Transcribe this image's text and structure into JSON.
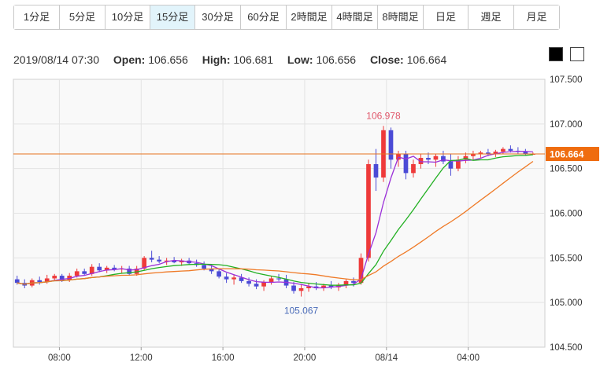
{
  "timeframes": [
    {
      "label": "1分足",
      "active": false
    },
    {
      "label": "5分足",
      "active": false
    },
    {
      "label": "10分足",
      "active": false
    },
    {
      "label": "15分足",
      "active": true
    },
    {
      "label": "30分足",
      "active": false
    },
    {
      "label": "60分足",
      "active": false
    },
    {
      "label": "2時間足",
      "active": false
    },
    {
      "label": "4時間足",
      "active": false
    },
    {
      "label": "8時間足",
      "active": false
    },
    {
      "label": "日足",
      "active": false
    },
    {
      "label": "週足",
      "active": false
    },
    {
      "label": "月足",
      "active": false
    }
  ],
  "ohlc": {
    "datetime": "2019/08/14 07:30",
    "open_label": "Open:",
    "open": "106.656",
    "high_label": "High:",
    "high": "106.681",
    "low_label": "Low:",
    "low": "106.656",
    "close_label": "Close:",
    "close": "106.664"
  },
  "theme_buttons": [
    "dark",
    "light"
  ],
  "chart_data": {
    "type": "candlestick",
    "y_ticks": [
      "107.500",
      "107.000",
      "106.500",
      "106.000",
      "105.500",
      "105.000",
      "104.500"
    ],
    "y_values": [
      107.5,
      107.0,
      106.5,
      106.0,
      105.5,
      105.0,
      104.5
    ],
    "ylim": [
      104.5,
      107.5
    ],
    "x_ticks": [
      "08:00",
      "12:00",
      "16:00",
      "20:00",
      "08/14",
      "04:00"
    ],
    "x_tick_hours": [
      8,
      12,
      16,
      20,
      24,
      28
    ],
    "x_range_hours": [
      5.75,
      31.75
    ],
    "current_price": "106.664",
    "current_price_value": 106.664,
    "high_annotation": {
      "label": "106.978",
      "value": 106.978,
      "hour": 22.5
    },
    "low_annotation": {
      "label": "105.067",
      "value": 105.067,
      "hour": 18.5
    },
    "colors": {
      "up": "#ee3a3a",
      "down": "#4b4bd6",
      "ma_short": "#9b30d9",
      "ma_mid": "#22b022",
      "ma_long": "#ef7a27",
      "price_line": "#e8741e",
      "price_tag": "#ef6c0f"
    },
    "grid": true,
    "candles": [
      [
        105.26,
        105.3,
        105.2,
        105.22
      ],
      [
        105.22,
        105.26,
        105.16,
        105.19
      ],
      [
        105.19,
        105.27,
        105.17,
        105.25
      ],
      [
        105.25,
        105.29,
        105.2,
        105.23
      ],
      [
        105.23,
        105.31,
        105.21,
        105.27
      ],
      [
        105.27,
        105.32,
        105.24,
        105.3
      ],
      [
        105.3,
        105.32,
        105.23,
        105.25
      ],
      [
        105.25,
        105.33,
        105.23,
        105.3
      ],
      [
        105.3,
        105.38,
        105.28,
        105.35
      ],
      [
        105.35,
        105.38,
        105.3,
        105.32
      ],
      [
        105.32,
        105.43,
        105.3,
        105.4
      ],
      [
        105.4,
        105.44,
        105.34,
        105.36
      ],
      [
        105.36,
        105.41,
        105.33,
        105.39
      ],
      [
        105.39,
        105.42,
        105.35,
        105.37
      ],
      [
        105.37,
        105.41,
        105.33,
        105.38
      ],
      [
        105.38,
        105.41,
        105.3,
        105.32
      ],
      [
        105.32,
        105.41,
        105.3,
        105.38
      ],
      [
        105.38,
        105.52,
        105.36,
        105.5
      ],
      [
        105.5,
        105.58,
        105.45,
        105.48
      ],
      [
        105.48,
        105.52,
        105.44,
        105.46
      ],
      [
        105.46,
        105.5,
        105.42,
        105.47
      ],
      [
        105.47,
        105.51,
        105.44,
        105.45
      ],
      [
        105.45,
        105.49,
        105.41,
        105.47
      ],
      [
        105.47,
        105.5,
        105.42,
        105.44
      ],
      [
        105.44,
        105.48,
        105.4,
        105.42
      ],
      [
        105.42,
        105.46,
        105.36,
        105.38
      ],
      [
        105.38,
        105.42,
        105.32,
        105.35
      ],
      [
        105.35,
        105.38,
        105.27,
        105.29
      ],
      [
        105.29,
        105.33,
        105.22,
        105.26
      ],
      [
        105.26,
        105.31,
        105.2,
        105.28
      ],
      [
        105.28,
        105.32,
        105.22,
        105.24
      ],
      [
        105.24,
        105.28,
        105.18,
        105.21
      ],
      [
        105.21,
        105.26,
        105.15,
        105.18
      ],
      [
        105.18,
        105.25,
        105.13,
        105.23
      ],
      [
        105.23,
        105.3,
        105.2,
        105.27
      ],
      [
        105.27,
        105.32,
        105.24,
        105.26
      ],
      [
        105.26,
        105.31,
        105.16,
        105.19
      ],
      [
        105.19,
        105.23,
        105.1,
        105.13
      ],
      [
        105.13,
        105.2,
        105.067,
        105.16
      ],
      [
        105.16,
        105.22,
        105.12,
        105.18
      ],
      [
        105.18,
        105.23,
        105.14,
        105.16
      ],
      [
        105.16,
        105.21,
        105.13,
        105.19
      ],
      [
        105.19,
        105.24,
        105.15,
        105.17
      ],
      [
        105.17,
        105.22,
        105.13,
        105.2
      ],
      [
        105.2,
        105.26,
        105.16,
        105.24
      ],
      [
        105.24,
        105.28,
        105.18,
        105.22
      ],
      [
        105.22,
        105.55,
        105.2,
        105.5
      ],
      [
        105.5,
        106.6,
        105.46,
        106.55
      ],
      [
        106.55,
        106.72,
        106.25,
        106.4
      ],
      [
        106.4,
        106.978,
        106.35,
        106.93
      ],
      [
        106.93,
        106.96,
        106.5,
        106.6
      ],
      [
        106.6,
        106.7,
        106.52,
        106.66
      ],
      [
        106.66,
        106.7,
        106.38,
        106.45
      ],
      [
        106.45,
        106.6,
        106.4,
        106.55
      ],
      [
        106.55,
        106.66,
        106.5,
        106.62
      ],
      [
        106.62,
        106.68,
        106.55,
        106.6
      ],
      [
        106.6,
        106.66,
        106.52,
        106.64
      ],
      [
        106.64,
        106.7,
        106.55,
        106.58
      ],
      [
        106.58,
        106.66,
        106.42,
        106.5
      ],
      [
        106.5,
        106.64,
        106.47,
        106.6
      ],
      [
        106.6,
        106.68,
        106.56,
        106.64
      ],
      [
        106.64,
        106.7,
        106.6,
        106.66
      ],
      [
        106.66,
        106.7,
        106.62,
        106.68
      ],
      [
        106.68,
        106.72,
        106.64,
        106.66
      ],
      [
        106.66,
        106.71,
        106.63,
        106.69
      ],
      [
        106.69,
        106.74,
        106.66,
        106.72
      ],
      [
        106.72,
        106.76,
        106.68,
        106.7
      ],
      [
        106.7,
        106.74,
        106.66,
        106.69
      ],
      [
        106.69,
        106.72,
        106.65,
        106.66
      ],
      [
        106.656,
        106.681,
        106.656,
        106.664
      ]
    ]
  }
}
